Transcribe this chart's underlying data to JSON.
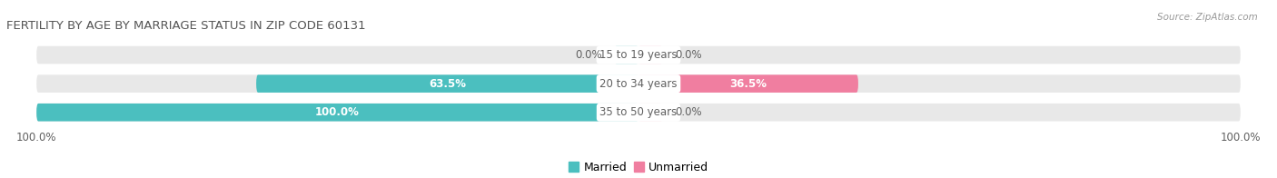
{
  "title": "FERTILITY BY AGE BY MARRIAGE STATUS IN ZIP CODE 60131",
  "source": "Source: ZipAtlas.com",
  "categories": [
    "15 to 19 years",
    "20 to 34 years",
    "35 to 50 years"
  ],
  "married": [
    0.0,
    63.5,
    100.0
  ],
  "unmarried": [
    0.0,
    36.5,
    0.0
  ],
  "married_color": "#4BBFBF",
  "unmarried_color": "#F07EA0",
  "unmarried_color_light": "#F9B8CE",
  "bar_bg_color": "#E8E8E8",
  "label_color_white": "#FFFFFF",
  "label_color_dark": "#606060",
  "title_color": "#555555",
  "source_color": "#999999",
  "title_fontsize": 9.5,
  "label_fontsize": 8.5,
  "cat_fontsize": 8.5,
  "legend_fontsize": 9.0,
  "axis_label_fontsize": 8.5,
  "xlim": [
    -105,
    105
  ],
  "bar_height": 0.62
}
